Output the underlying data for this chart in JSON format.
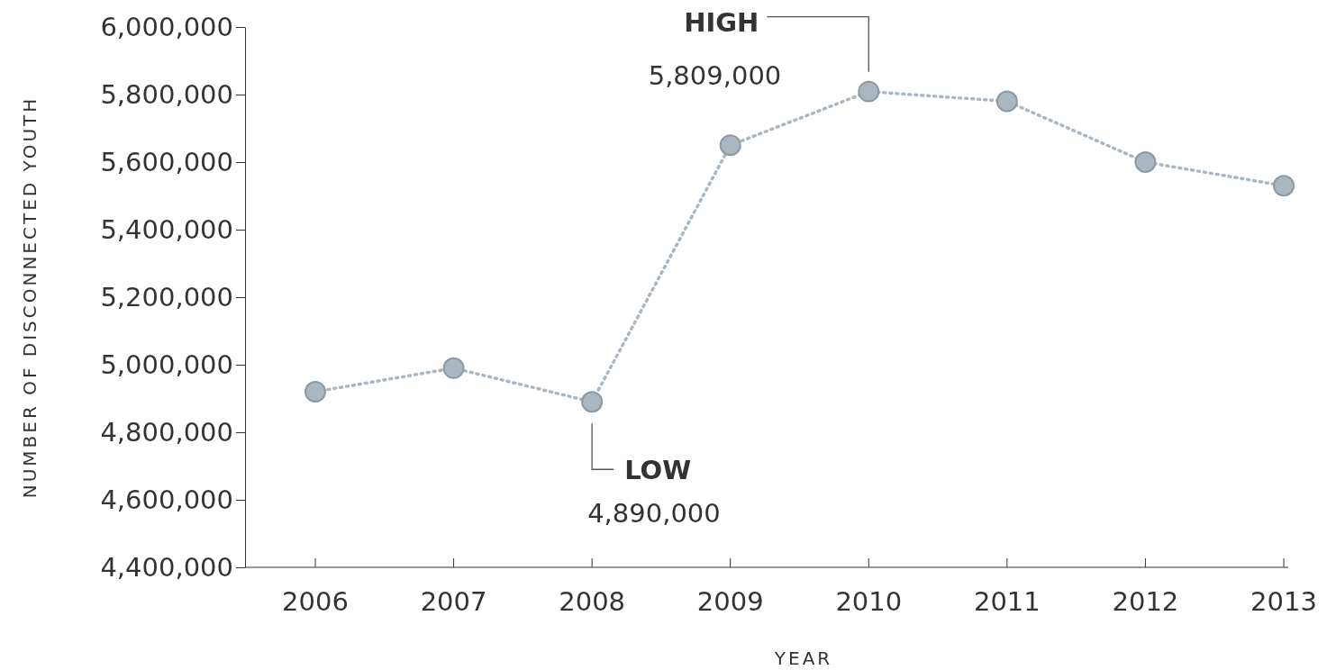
{
  "chart_data": {
    "type": "line",
    "xlabel": "YEAR",
    "ylabel": "NUMBER OF DISCONNECTED YOUTH",
    "categories": [
      "2006",
      "2007",
      "2008",
      "2009",
      "2010",
      "2011",
      "2012",
      "2013"
    ],
    "series": [
      {
        "color": "#a9b7c3",
        "values": [
          4920000,
          4990000,
          4890000,
          5650000,
          5809000,
          5780000,
          5600000,
          5530000
        ]
      }
    ],
    "ylim": [
      4400000,
      6000000
    ],
    "yticks": [
      {
        "value": 4400000,
        "label": "4,400,000"
      },
      {
        "value": 4600000,
        "label": "4,600,000"
      },
      {
        "value": 4800000,
        "label": "4,800,000"
      },
      {
        "value": 5000000,
        "label": "5,000,000"
      },
      {
        "value": 5200000,
        "label": "5,200,000"
      },
      {
        "value": 5400000,
        "label": "5,400,000"
      },
      {
        "value": 5600000,
        "label": "5,600,000"
      },
      {
        "value": 5800000,
        "label": "5,800,000"
      },
      {
        "value": 6000000,
        "label": "6,000,000"
      }
    ],
    "annotations": [
      "HIGH",
      "5,809,000",
      "LOW",
      "4,890,000"
    ],
    "grid": false,
    "marker": "circle",
    "line_style": "dotted"
  }
}
